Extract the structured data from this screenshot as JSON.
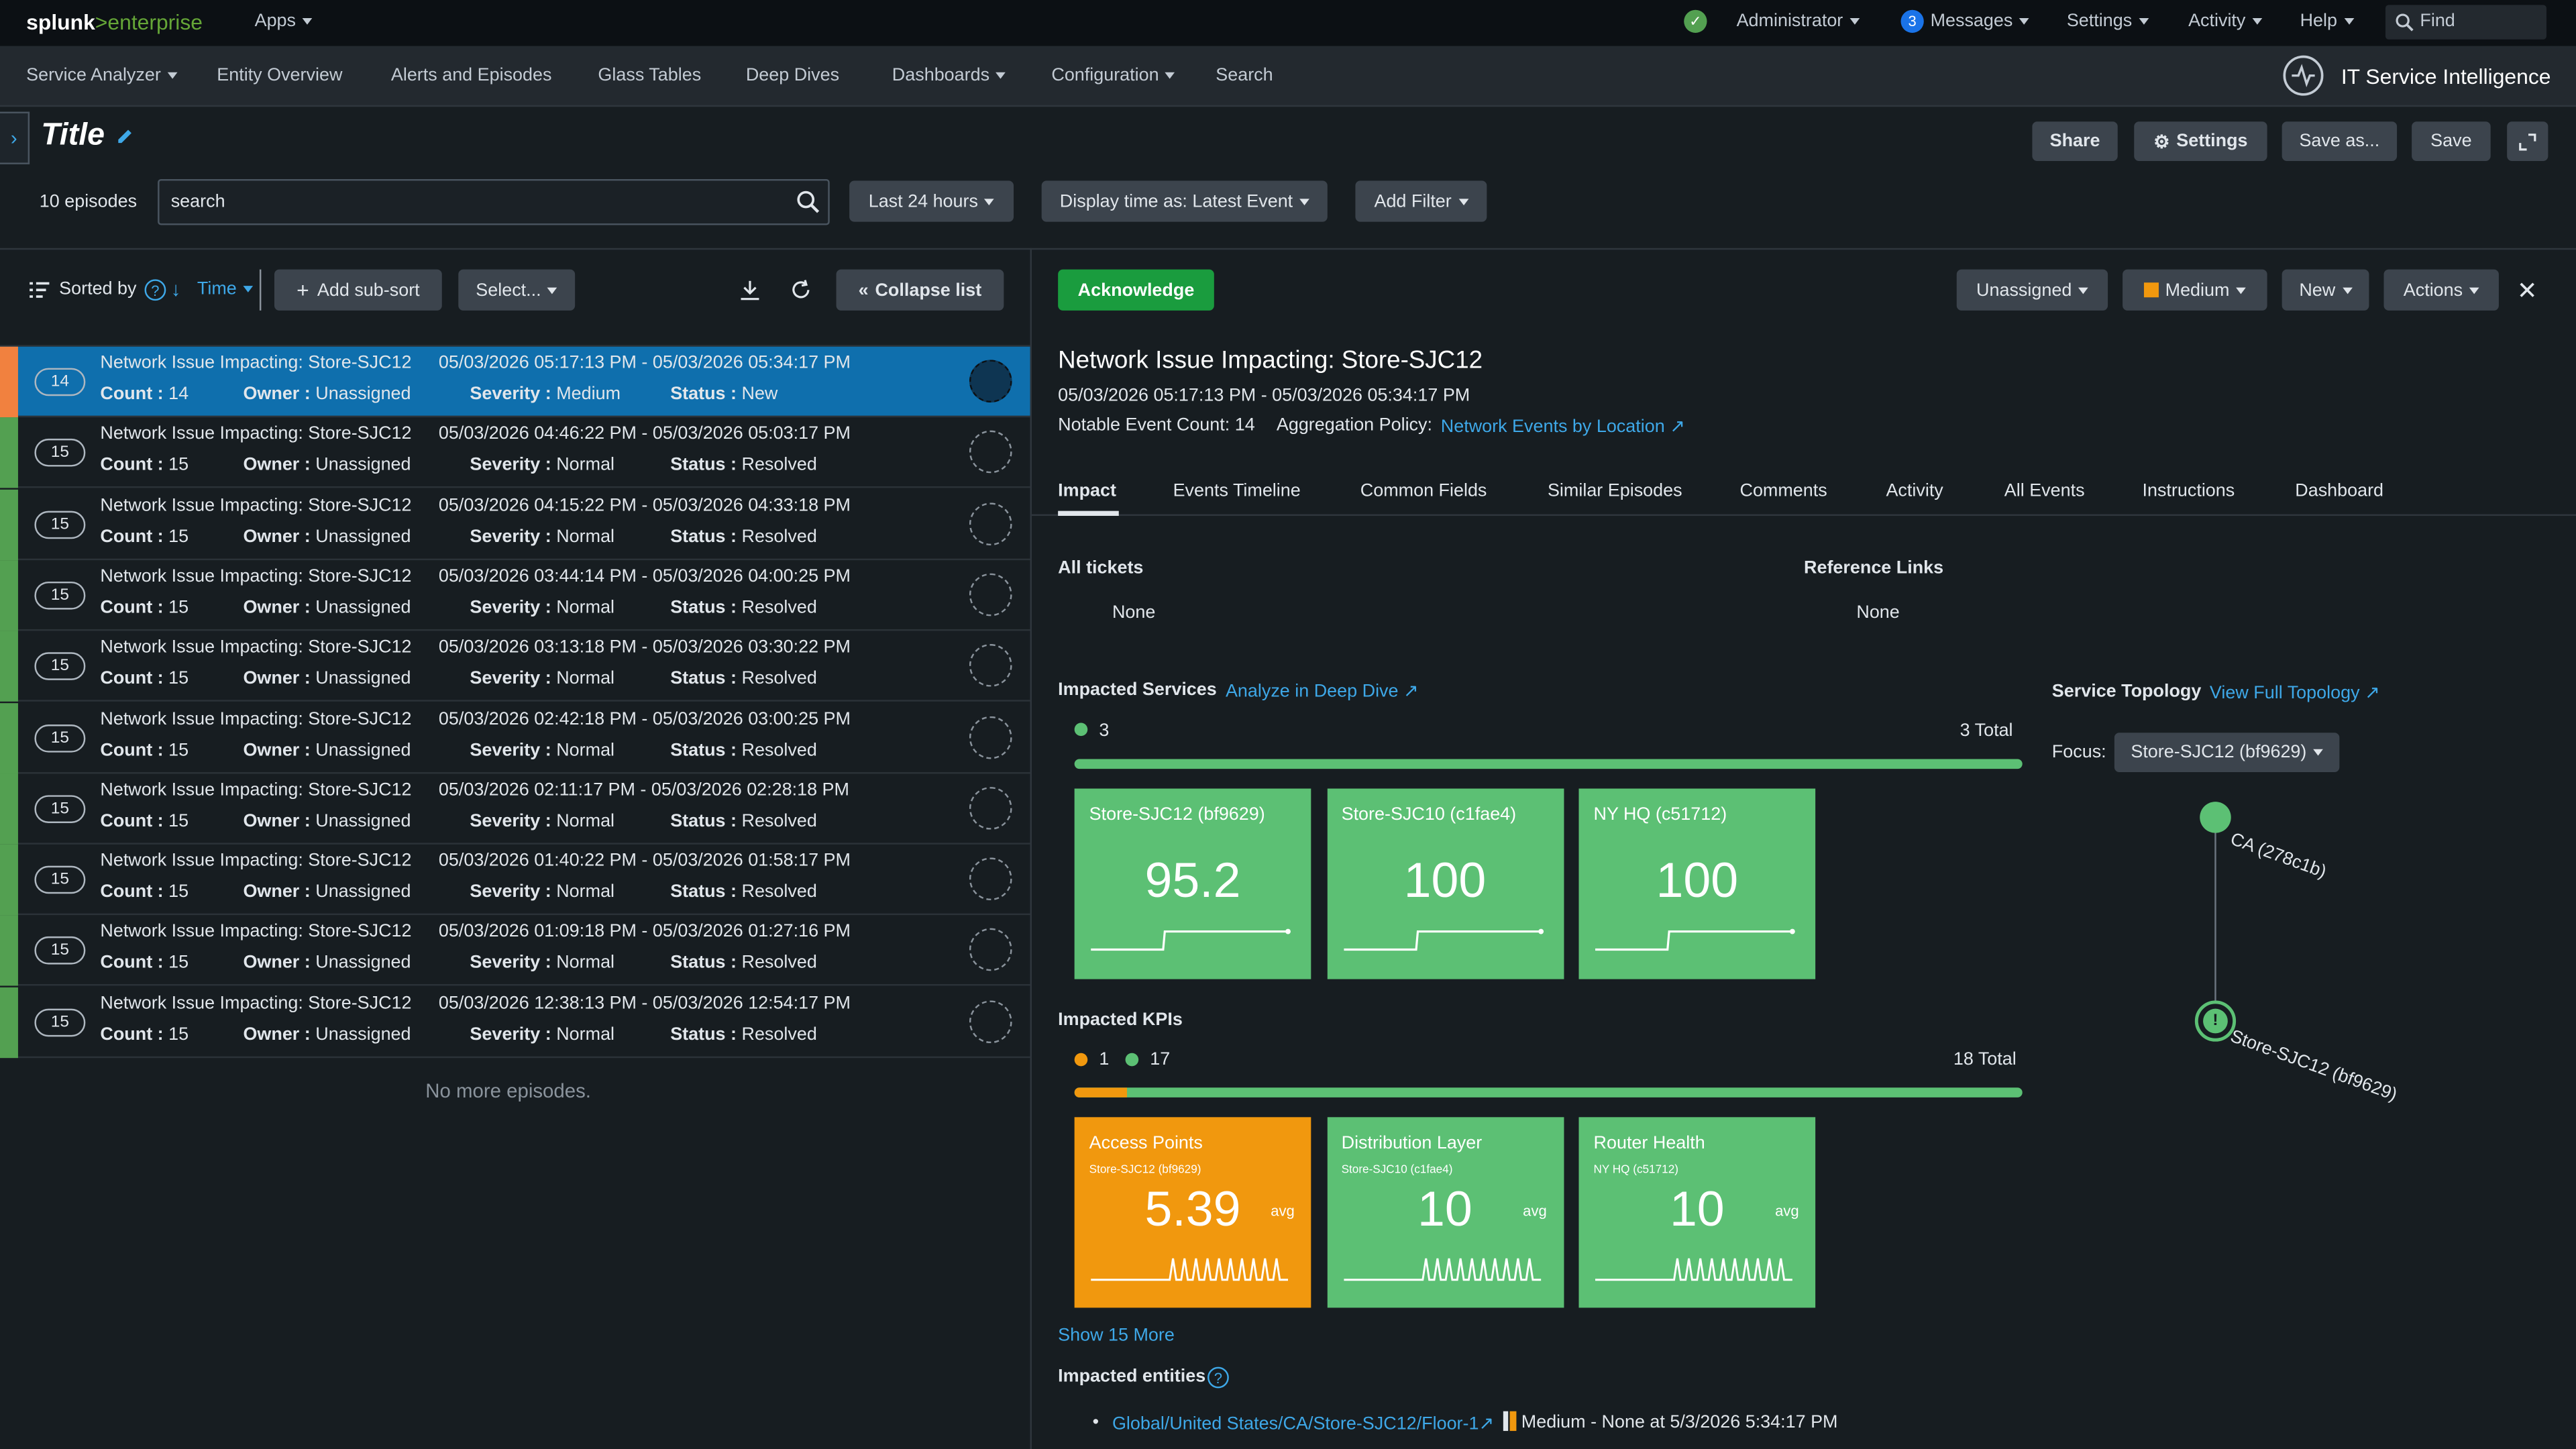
{
  "topbar": {
    "logo_left": "splunk",
    "logo_right": ">enterprise",
    "apps": "Apps",
    "admin": "Administrator",
    "messages_count": "3",
    "messages": "Messages",
    "settings": "Settings",
    "activity": "Activity",
    "help": "Help",
    "find_placeholder": "Find"
  },
  "navbar": {
    "items": [
      "Service Analyzer",
      "Entity Overview",
      "Alerts and Episodes",
      "Glass Tables",
      "Deep Dives",
      "Dashboards",
      "Configuration",
      "Search"
    ],
    "app_name": "IT Service Intelligence"
  },
  "header": {
    "title": "Title",
    "share": "Share",
    "settings": "Settings",
    "save_as": "Save as...",
    "save": "Save"
  },
  "filters": {
    "episode_count": "10 episodes",
    "search_value": "search",
    "time_range": "Last 24 hours",
    "display_time": "Display time as: Latest Event",
    "add_filter": "Add Filter"
  },
  "list_toolbar": {
    "sorted_by": "Sorted by",
    "sort_field": "Time",
    "add_subsort": "Add sub-sort",
    "select": "Select...",
    "collapse": "Collapse list"
  },
  "episodes": [
    {
      "count_badge": "14",
      "title": "Network Issue Impacting: Store-SJC12",
      "time": "05/03/2026 05:17:13 PM - 05/03/2026 05:34:17 PM",
      "count": "14",
      "owner": "Unassigned",
      "severity": "Medium",
      "status": "New"
    },
    {
      "count_badge": "15",
      "title": "Network Issue Impacting: Store-SJC12",
      "time": "05/03/2026 04:46:22 PM - 05/03/2026 05:03:17 PM",
      "count": "15",
      "owner": "Unassigned",
      "severity": "Normal",
      "status": "Resolved"
    },
    {
      "count_badge": "15",
      "title": "Network Issue Impacting: Store-SJC12",
      "time": "05/03/2026 04:15:22 PM - 05/03/2026 04:33:18 PM",
      "count": "15",
      "owner": "Unassigned",
      "severity": "Normal",
      "status": "Resolved"
    },
    {
      "count_badge": "15",
      "title": "Network Issue Impacting: Store-SJC12",
      "time": "05/03/2026 03:44:14 PM - 05/03/2026 04:00:25 PM",
      "count": "15",
      "owner": "Unassigned",
      "severity": "Normal",
      "status": "Resolved"
    },
    {
      "count_badge": "15",
      "title": "Network Issue Impacting: Store-SJC12",
      "time": "05/03/2026 03:13:18 PM - 05/03/2026 03:30:22 PM",
      "count": "15",
      "owner": "Unassigned",
      "severity": "Normal",
      "status": "Resolved"
    },
    {
      "count_badge": "15",
      "title": "Network Issue Impacting: Store-SJC12",
      "time": "05/03/2026 02:42:18 PM - 05/03/2026 03:00:25 PM",
      "count": "15",
      "owner": "Unassigned",
      "severity": "Normal",
      "status": "Resolved"
    },
    {
      "count_badge": "15",
      "title": "Network Issue Impacting: Store-SJC12",
      "time": "05/03/2026 02:11:17 PM - 05/03/2026 02:28:18 PM",
      "count": "15",
      "owner": "Unassigned",
      "severity": "Normal",
      "status": "Resolved"
    },
    {
      "count_badge": "15",
      "title": "Network Issue Impacting: Store-SJC12",
      "time": "05/03/2026 01:40:22 PM - 05/03/2026 01:58:17 PM",
      "count": "15",
      "owner": "Unassigned",
      "severity": "Normal",
      "status": "Resolved"
    },
    {
      "count_badge": "15",
      "title": "Network Issue Impacting: Store-SJC12",
      "time": "05/03/2026 01:09:18 PM - 05/03/2026 01:27:16 PM",
      "count": "15",
      "owner": "Unassigned",
      "severity": "Normal",
      "status": "Resolved"
    },
    {
      "count_badge": "15",
      "title": "Network Issue Impacting: Store-SJC12",
      "time": "05/03/2026 12:38:13 PM - 05/03/2026 12:54:17 PM",
      "count": "15",
      "owner": "Unassigned",
      "severity": "Normal",
      "status": "Resolved"
    }
  ],
  "field_labels": {
    "count": "Count :",
    "owner": "Owner :",
    "severity": "Severity :",
    "status": "Status :"
  },
  "no_more": "No more episodes.",
  "detail": {
    "acknowledge": "Acknowledge",
    "owner": "Unassigned",
    "severity": "Medium",
    "status": "New",
    "actions": "Actions",
    "title": "Network Issue Impacting: Store-SJC12",
    "time": "05/03/2026 05:17:13 PM - 05/03/2026 05:34:17 PM",
    "notable_count": "Notable Event Count: 14",
    "aggregation_label": "Aggregation Policy:",
    "aggregation_value": "Network Events by Location",
    "tabs": [
      "Impact",
      "Events Timeline",
      "Common Fields",
      "Similar Episodes",
      "Comments",
      "Activity",
      "All Events",
      "Instructions",
      "Dashboard"
    ],
    "all_tickets": "All tickets",
    "tickets_value": "None",
    "reference_links": "Reference Links",
    "links_value": "None",
    "impacted_services": "Impacted Services",
    "analyze": "Analyze in Deep Dive",
    "services_green": "3",
    "services_total": "3 Total",
    "services": [
      {
        "name": "Store-SJC12 (bf9629)",
        "value": "95.2"
      },
      {
        "name": "Store-SJC10 (c1fae4)",
        "value": "100"
      },
      {
        "name": "NY HQ (c51712)",
        "value": "100"
      }
    ],
    "impacted_kpis": "Impacted KPIs",
    "kpis_orange": "1",
    "kpis_green": "17",
    "kpis_total": "18 Total",
    "kpis": [
      {
        "name": "Access Points",
        "service": "Store-SJC12 (bf9629)",
        "value": "5.39",
        "unit": "avg",
        "color": "#f1980e"
      },
      {
        "name": "Distribution Layer",
        "service": "Store-SJC10 (c1fae4)",
        "value": "10",
        "unit": "avg",
        "color": "#5cc074"
      },
      {
        "name": "Router Health",
        "service": "NY HQ (c51712)",
        "value": "10",
        "unit": "avg",
        "color": "#5cc074"
      }
    ],
    "show_more": "Show 15 More",
    "impacted_entities": "Impacted entities",
    "entity_link": "Global/United States/CA/Store-SJC12/Floor-1",
    "entity_rest": "Medium - None at 5/3/2026 5:34:17 PM",
    "topology_title": "Service Topology",
    "view_topology": "View Full Topology",
    "focus_label": "Focus:",
    "focus_value": "Store-SJC12 (bf9629)",
    "node_top": "CA (278c1b)",
    "node_bottom": "Store-SJC12 (bf9629)"
  },
  "colors": {
    "normal": "#5cc074",
    "medium": "#f1980e",
    "selected": "#0f6fad",
    "acknowledge": "#1a9c3e",
    "link": "#3ea8e8"
  }
}
